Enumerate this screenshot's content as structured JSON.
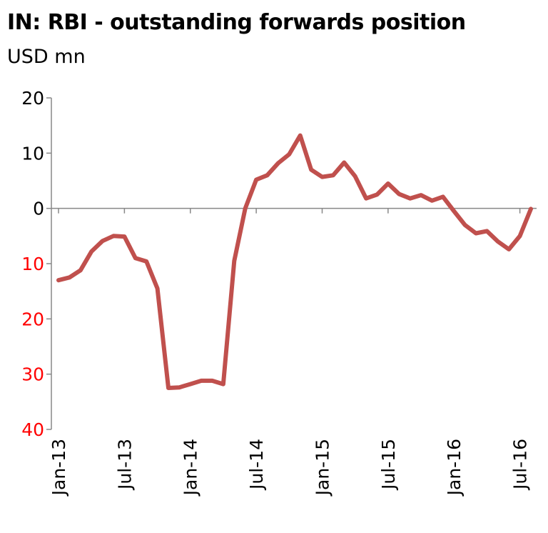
{
  "title": "IN: RBI - outstanding forwards position",
  "subtitle": "USD mn",
  "colors": {
    "line": "#c0504d",
    "positive_tick": "#000000",
    "negative_tick": "#ff0000",
    "axis": "#888888"
  },
  "chart_data": {
    "type": "line",
    "title": "IN: RBI - outstanding forwards position",
    "ylabel": "USD mn",
    "xlabel": "",
    "ylim": [
      -40,
      20
    ],
    "yticks": [
      20,
      10,
      0,
      -10,
      -20,
      -30,
      -40
    ],
    "ytick_labels": [
      "20",
      "10",
      "0",
      "10",
      "20",
      "30",
      "40"
    ],
    "xticks": [
      {
        "label": "Jan-13",
        "x": 0
      },
      {
        "label": "Jul-13",
        "x": 6
      },
      {
        "label": "Jan-14",
        "x": 12
      },
      {
        "label": "Jul-14",
        "x": 18
      },
      {
        "label": "Jan-15",
        "x": 24
      },
      {
        "label": "Jul-15",
        "x": 30
      },
      {
        "label": "Jan-16",
        "x": 36
      },
      {
        "label": "Jul-16",
        "x": 42
      }
    ],
    "grid": false,
    "series": [
      {
        "x": [
          0,
          1,
          2,
          3,
          4,
          5,
          6,
          7,
          8,
          9,
          10,
          11,
          12,
          13,
          14,
          15,
          16,
          17,
          18,
          19,
          20,
          21,
          22,
          23,
          24,
          25,
          26,
          27,
          28,
          29,
          30,
          31,
          32,
          33,
          34,
          35,
          36,
          37,
          38,
          39,
          40,
          41,
          42,
          43
        ],
        "values": [
          -13,
          -12.5,
          -11.2,
          -7.8,
          -5.9,
          -5,
          -5.1,
          -9,
          -9.6,
          -14.5,
          -32.5,
          -32.4,
          -31.8,
          -31.2,
          -31.2,
          -31.8,
          -9.5,
          0,
          5.2,
          6,
          8.2,
          9.8,
          13.2,
          7,
          5.7,
          6,
          8.3,
          5.8,
          1.8,
          2.5,
          4.5,
          2.6,
          1.8,
          2.4,
          1.4,
          2.1,
          -0.5,
          -3,
          -4.5,
          -4.1,
          -6,
          -7.4,
          -5,
          -0.1
        ]
      }
    ]
  }
}
